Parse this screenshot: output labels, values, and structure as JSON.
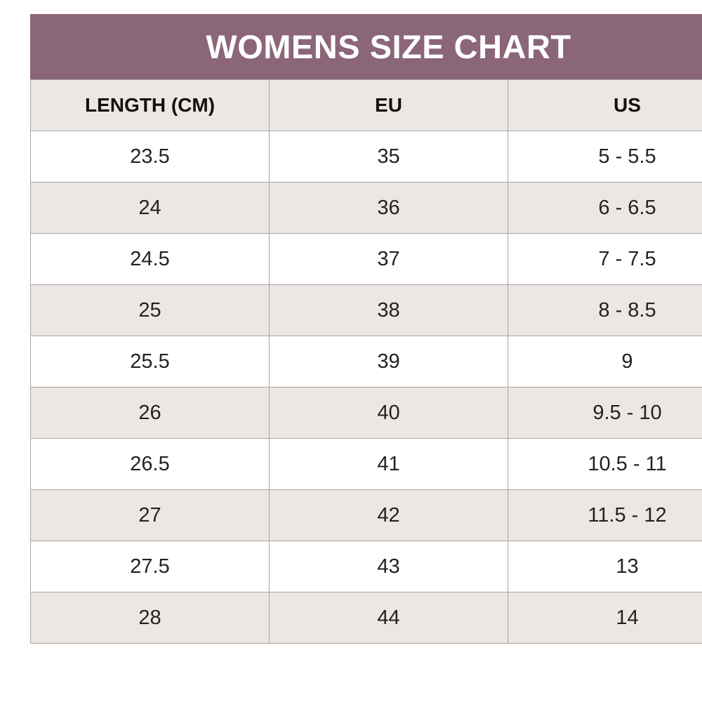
{
  "header": {
    "title": "WOMENS SIZE CHART"
  },
  "table": {
    "columns": [
      "LENGTH (CM)",
      "EU",
      "US"
    ],
    "rows": [
      [
        "23.5",
        "35",
        "5 - 5.5"
      ],
      [
        "24",
        "36",
        "6 - 6.5"
      ],
      [
        "24.5",
        "37",
        "7 - 7.5"
      ],
      [
        "25",
        "38",
        "8 - 8.5"
      ],
      [
        "25.5",
        "39",
        "9"
      ],
      [
        "26",
        "40",
        "9.5 - 10"
      ],
      [
        "26.5",
        "41",
        "10.5 - 11"
      ],
      [
        "27",
        "42",
        "11.5 - 12"
      ],
      [
        "27.5",
        "43",
        "13"
      ],
      [
        "28",
        "44",
        "14"
      ]
    ]
  }
}
